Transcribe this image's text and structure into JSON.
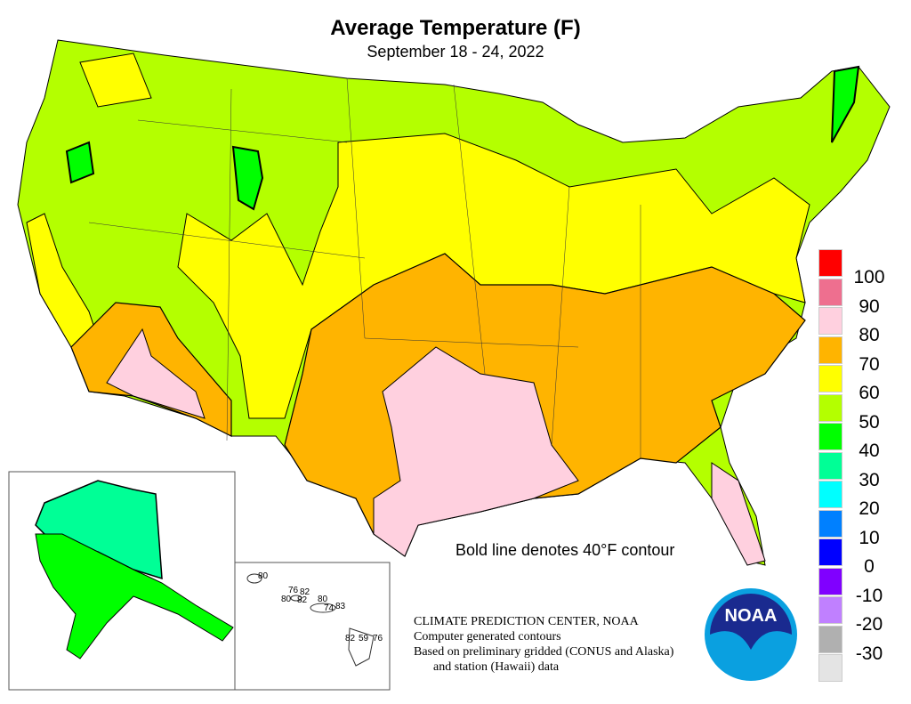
{
  "title": "Average Temperature (F)",
  "subtitle": "September 18 - 24, 2022",
  "note": "Bold line denotes 40°F contour",
  "credits": [
    "CLIMATE PREDICTION CENTER, NOAA",
    "Computer generated contours",
    "Based on preliminary gridded (CONUS and Alaska)",
    "and station (Hawaii) data"
  ],
  "logo_text": "NOAA",
  "legend": {
    "colors": [
      "#ff0000",
      "#ee6f8f",
      "#ffd0df",
      "#ffb400",
      "#ffff00",
      "#b4ff00",
      "#00ff00",
      "#00ff96",
      "#00ffff",
      "#0080ff",
      "#0000ff",
      "#8000ff",
      "#c080ff",
      "#b0b0b0",
      "#e4e4e4"
    ],
    "labels": [
      "100",
      "90",
      "80",
      "70",
      "60",
      "50",
      "40",
      "30",
      "20",
      "10",
      "0",
      "-10",
      "-20",
      "-30"
    ]
  },
  "hawaii_values": [
    "80",
    "76",
    "82",
    "80",
    "82",
    "80",
    "74",
    "83",
    "82",
    "59",
    "76"
  ]
}
